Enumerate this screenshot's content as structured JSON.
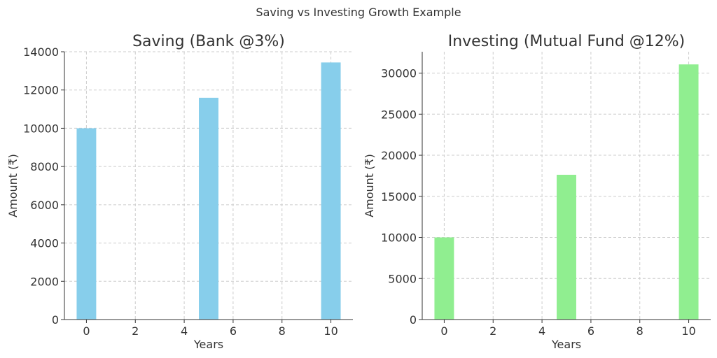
{
  "figure": {
    "suptitle": "Saving vs Investing Growth Example"
  },
  "chart_data": [
    {
      "type": "bar",
      "title": "Saving (Bank @3%)",
      "xlabel": "Years",
      "ylabel": "Amount (₹)",
      "x": [
        0,
        5,
        10
      ],
      "values": [
        10000,
        11593,
        13439
      ],
      "bar_width": 0.8,
      "color": "#87CEEB",
      "xlim": [
        -0.9,
        10.9
      ],
      "ylim": [
        0,
        14000
      ],
      "xticks": [
        0,
        2,
        4,
        6,
        8,
        10
      ],
      "yticks": [
        0,
        2000,
        4000,
        6000,
        8000,
        10000,
        12000,
        14000
      ],
      "grid": true
    },
    {
      "type": "bar",
      "title": "Investing (Mutual Fund @12%)",
      "xlabel": "Years",
      "ylabel": "Amount (₹)",
      "x": [
        0,
        5,
        10
      ],
      "values": [
        10000,
        17623,
        31058
      ],
      "bar_width": 0.8,
      "color": "#90EE90",
      "xlim": [
        -0.9,
        10.9
      ],
      "ylim": [
        0,
        32600
      ],
      "xticks": [
        0,
        2,
        4,
        6,
        8,
        10
      ],
      "yticks": [
        0,
        5000,
        10000,
        15000,
        20000,
        25000,
        30000
      ],
      "grid": true
    }
  ]
}
